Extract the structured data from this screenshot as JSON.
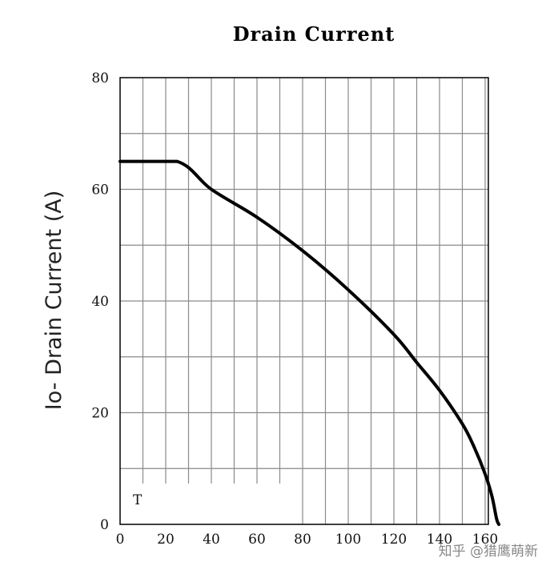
{
  "chart_data": {
    "type": "line",
    "title": "Drain Current",
    "ylabel": "Io- Drain Current (A)",
    "xlabel": "",
    "xlim": [
      0,
      160
    ],
    "ylim": [
      0,
      80
    ],
    "x_ticks": [
      0,
      20,
      40,
      60,
      80,
      100,
      120,
      140,
      160
    ],
    "x_tick_labels": [
      "0",
      "20",
      "40",
      "60",
      "80 ",
      "100",
      "120",
      "140",
      "160"
    ],
    "y_ticks": [
      0,
      20,
      40,
      60,
      80
    ],
    "y_tick_labels": [
      "0",
      "20",
      "40",
      "60",
      "80"
    ],
    "grid": true,
    "annotation": "T",
    "series": [
      {
        "x": [
          0,
          25,
          40,
          60,
          80,
          100,
          120,
          130,
          140,
          150,
          155,
          160,
          163,
          165,
          166
        ],
        "y": [
          65,
          65,
          60,
          55,
          49,
          42,
          34,
          29,
          24,
          18,
          14,
          9,
          5,
          1,
          0
        ]
      }
    ]
  },
  "watermark": "知乎 @猎鹰萌新",
  "colors": {
    "line": "#000000",
    "grid": "#8a8a8a",
    "frame": "#000000"
  }
}
